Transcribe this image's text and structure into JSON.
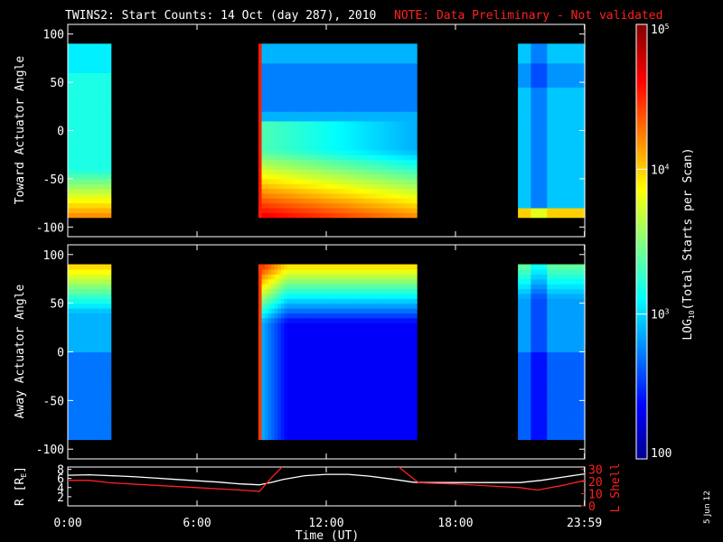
{
  "header": {
    "title": "TWINS2: Start Counts: 14 Oct (day 287), 2010",
    "note": "NOTE: Data Preliminary - Not validated"
  },
  "footer": {
    "date_stamp": "5 Jun 12"
  },
  "colors": {
    "background": "#000000",
    "frame": "#ffffff",
    "note": "#ff2020",
    "r_line": "#ffffff",
    "l_line": "#ff2020"
  },
  "chart_data": [
    {
      "type": "heatmap",
      "ylabel": "Toward Actuator Angle",
      "ylim": [
        -110,
        110
      ],
      "yticks": [
        "100",
        "50",
        "0",
        "-50",
        "-100"
      ],
      "angle_range": [
        -90,
        90
      ],
      "data_intervals_hours": [
        [
          0.0,
          2.0
        ],
        [
          8.85,
          16.2
        ],
        [
          20.9,
          24.0
        ]
      ],
      "value_units": "log10(total starts per scan)"
    },
    {
      "type": "heatmap",
      "ylabel": "Away Actuator Angle",
      "ylim": [
        -110,
        110
      ],
      "yticks": [
        "100",
        "50",
        "0",
        "-50",
        "-100"
      ],
      "angle_range": [
        -90,
        90
      ],
      "data_intervals_hours": [
        [
          0.0,
          2.0
        ],
        [
          8.85,
          16.2
        ],
        [
          20.9,
          24.0
        ]
      ],
      "value_units": "log10(total starts per scan)"
    },
    {
      "type": "line",
      "left_label": "R [R",
      "left_label_sub": "E",
      "left_label_end": "]",
      "left_ticks": [
        "8",
        "6",
        "4",
        "2"
      ],
      "ylim_left": [
        0,
        8.5
      ],
      "right_label": "L Shell",
      "right_ticks": [
        "30",
        "20",
        "10",
        "0"
      ],
      "ylim_right": [
        0,
        32
      ],
      "xlabel": "Time (UT)",
      "xticks": [
        "0:00",
        "6:00",
        "12:00",
        "18:00",
        "23:59"
      ],
      "xlim": [
        0,
        24
      ],
      "series": [
        {
          "name": "R",
          "axis": "left",
          "x": [
            0,
            1,
            2,
            3,
            4,
            5,
            6,
            7,
            8,
            8.9,
            9.5,
            10,
            11,
            12,
            13,
            14,
            15,
            16,
            16.3,
            18,
            20,
            21,
            22,
            23,
            24
          ],
          "y": [
            6.7,
            6.8,
            6.6,
            6.4,
            6.1,
            5.8,
            5.5,
            5.2,
            4.8,
            4.6,
            5.2,
            5.8,
            6.6,
            6.9,
            6.9,
            6.5,
            5.9,
            5.2,
            5.1,
            5.1,
            5.1,
            5.1,
            5.6,
            6.3,
            7.0
          ]
        },
        {
          "name": "L Shell",
          "axis": "right",
          "x": [
            0,
            1,
            2,
            4,
            6,
            8,
            8.9,
            9.5,
            10,
            15.3,
            16,
            16.3,
            18,
            20,
            21,
            21.8,
            23,
            24
          ],
          "y": [
            21,
            21,
            19,
            17,
            15,
            13,
            12,
            24,
            33,
            33,
            23,
            19,
            18,
            16,
            15,
            13,
            17,
            21
          ]
        }
      ]
    }
  ],
  "colorbar": {
    "label_pre": "LOG",
    "label_sub": "10",
    "label_post": "(Total Starts per Scan)",
    "ticks": [
      {
        "base": "10",
        "exp": "5",
        "value": 100000
      },
      {
        "base": "10",
        "exp": "4",
        "value": 10000
      },
      {
        "base": "10",
        "exp": "3",
        "value": 1000
      },
      {
        "base": "100",
        "exp": "",
        "value": 100
      }
    ],
    "range": [
      100,
      100000
    ]
  }
}
